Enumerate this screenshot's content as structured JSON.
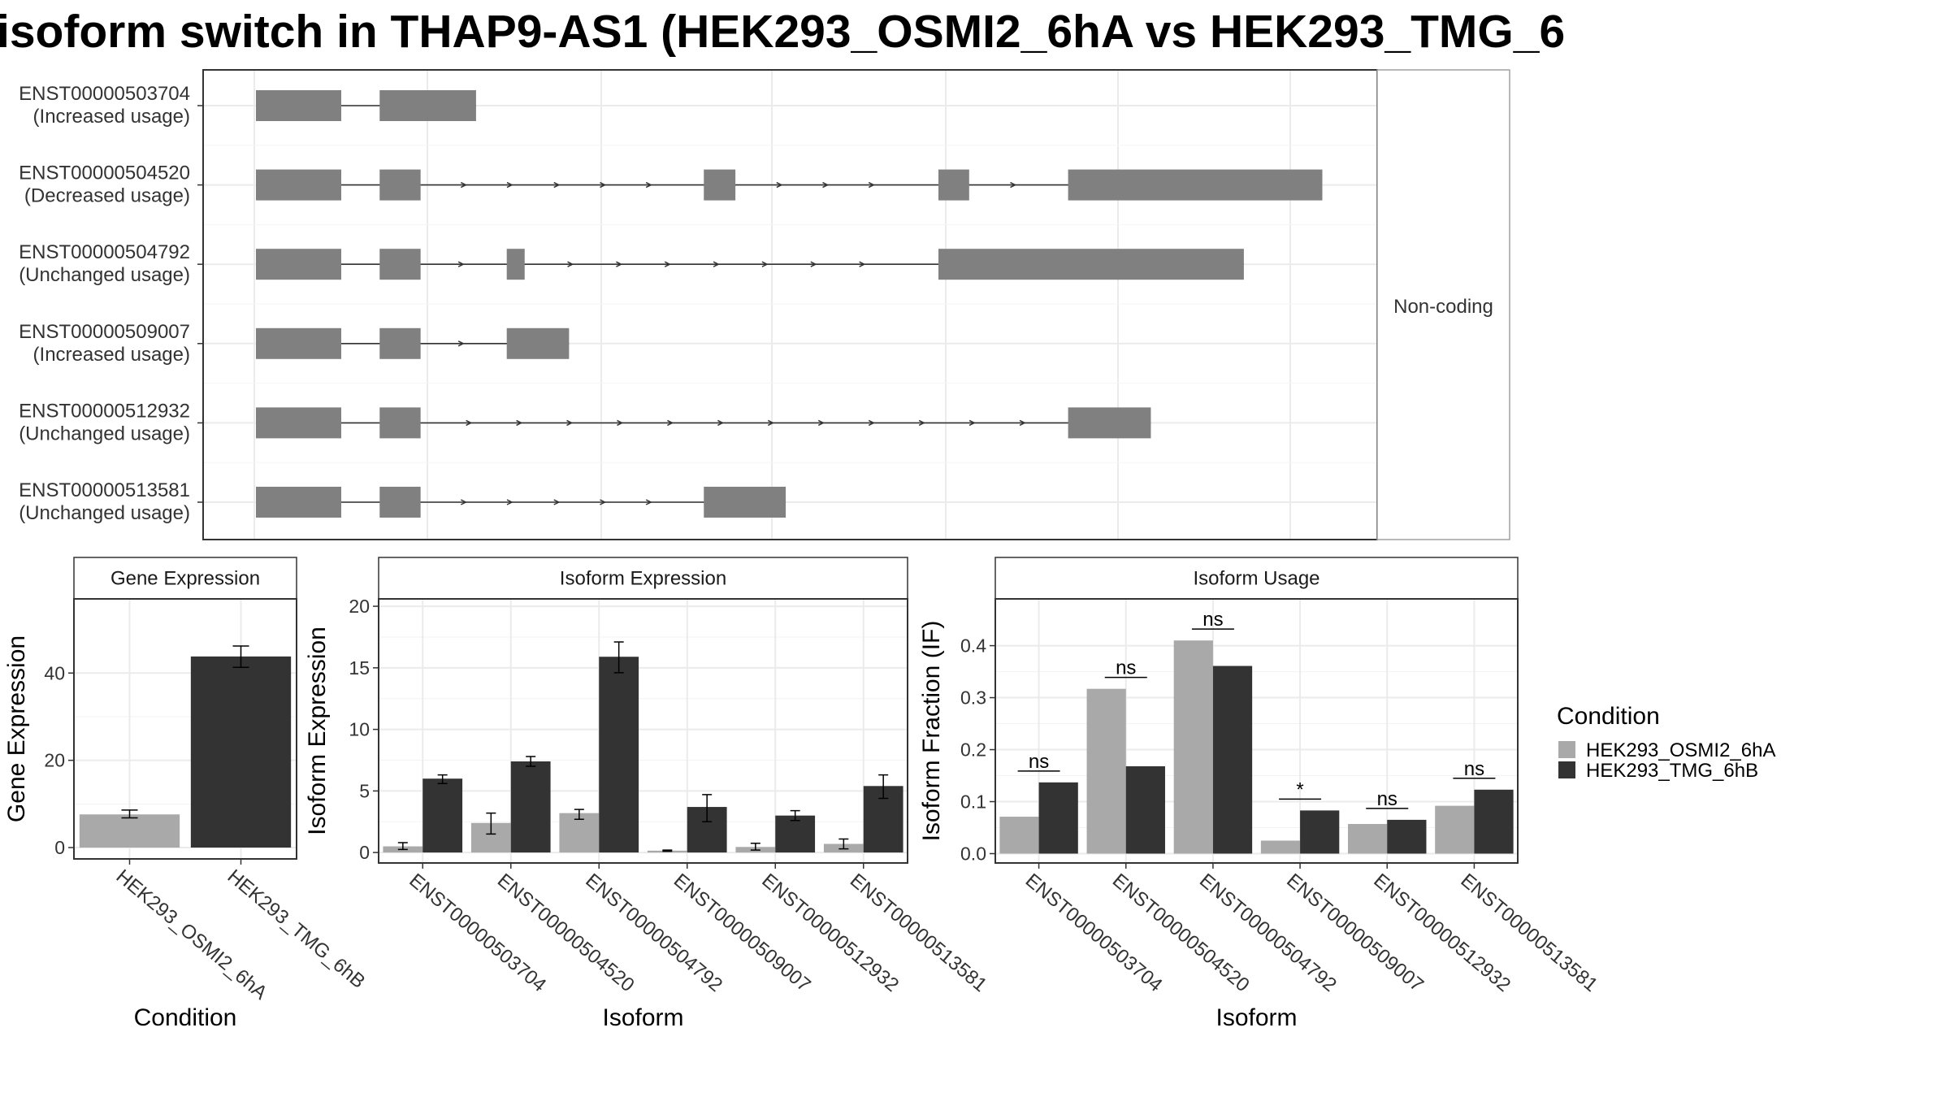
{
  "title": "isoform switch in THAP9-AS1 (HEK293_OSMI2_6hA vs HEK293_TMG_6",
  "colors": {
    "osmi": "#a9a9a9",
    "tmg": "#333333",
    "exon": "#808080",
    "panel_border": "#333333",
    "grid": "#ebebeb"
  },
  "structure": {
    "facet_label": "Non-coding",
    "transcripts": [
      {
        "id": "ENST00000503704",
        "usage": "(Increased usage)",
        "exons": [
          [
            0,
            100
          ],
          [
            145,
            258
          ]
        ],
        "arrows": []
      },
      {
        "id": "ENST00000504520",
        "usage": "(Decreased usage)",
        "exons": [
          [
            0,
            100
          ],
          [
            145,
            193
          ],
          [
            525,
            562
          ],
          [
            800,
            836
          ],
          [
            952,
            1250
          ]
        ],
        "arrows": [
          246,
          300,
          355,
          409,
          463,
          616,
          670,
          724,
          890
        ]
      },
      {
        "id": "ENST00000504792",
        "usage": "(Unchanged usage)",
        "exons": [
          [
            0,
            100
          ],
          [
            145,
            193
          ],
          [
            294,
            315
          ],
          [
            800,
            1158
          ]
        ],
        "arrows": [
          243,
          371,
          428,
          485,
          542,
          599,
          656,
          713
        ]
      },
      {
        "id": "ENST00000509007",
        "usage": "(Increased usage)",
        "exons": [
          [
            0,
            100
          ],
          [
            145,
            193
          ],
          [
            294,
            367
          ]
        ],
        "arrows": [
          243
        ]
      },
      {
        "id": "ENST00000512932",
        "usage": "(Unchanged usage)",
        "exons": [
          [
            0,
            100
          ],
          [
            145,
            193
          ],
          [
            952,
            1049
          ]
        ],
        "arrows": [
          252,
          311,
          370,
          429,
          488,
          547,
          606,
          665,
          724,
          783,
          842,
          901
        ]
      },
      {
        "id": "ENST00000513581",
        "usage": "(Unchanged usage)",
        "exons": [
          [
            0,
            100
          ],
          [
            145,
            193
          ],
          [
            525,
            621
          ]
        ],
        "arrows": [
          246,
          300,
          355,
          409,
          463
        ]
      }
    ]
  },
  "legend": {
    "title": "Condition",
    "items": [
      "HEK293_OSMI2_6hA",
      "HEK293_TMG_6hB"
    ]
  },
  "chart_data": [
    {
      "type": "bar",
      "title": "Gene Expression",
      "xlabel": "Condition",
      "ylabel": "Gene Expression",
      "categories": [
        "HEK293_OSMI2_6hA",
        "HEK293_TMG_6hB"
      ],
      "values": [
        7.6,
        43.8
      ],
      "errors": [
        [
          6.8,
          8.6
        ],
        [
          41.3,
          46.2
        ]
      ],
      "ylim": [
        -2.6,
        57
      ],
      "yticks": [
        0,
        20,
        40
      ],
      "grid": true
    },
    {
      "type": "bar",
      "title": "Isoform Expression",
      "xlabel": "Isoform",
      "ylabel": "Isoform Expression",
      "categories": [
        "ENST00000503704",
        "ENST00000504520",
        "ENST00000504792",
        "ENST00000509007",
        "ENST00000512932",
        "ENST00000513581"
      ],
      "series": [
        {
          "name": "HEK293_OSMI2_6hA",
          "values": [
            0.5,
            2.4,
            3.2,
            0.15,
            0.45,
            0.7
          ],
          "errors": [
            [
              0.25,
              0.8
            ],
            [
              1.5,
              3.2
            ],
            [
              2.7,
              3.5
            ],
            [
              0.1,
              0.2
            ],
            [
              0.2,
              0.75
            ],
            [
              0.3,
              1.1
            ]
          ]
        },
        {
          "name": "HEK293_TMG_6hB",
          "values": [
            6.0,
            7.4,
            15.9,
            3.7,
            3.0,
            5.4
          ],
          "errors": [
            [
              5.6,
              6.3
            ],
            [
              7.0,
              7.8
            ],
            [
              14.6,
              17.1
            ],
            [
              2.5,
              4.7
            ],
            [
              2.6,
              3.4
            ],
            [
              4.4,
              6.3
            ]
          ]
        }
      ],
      "ylim": [
        -0.85,
        20.6
      ],
      "yticks": [
        0,
        5,
        10,
        15,
        20
      ],
      "grid": true
    },
    {
      "type": "bar",
      "title": "Isoform Usage",
      "xlabel": "Isoform",
      "ylabel": "Isoform Fraction (IF)",
      "categories": [
        "ENST00000503704",
        "ENST00000504520",
        "ENST00000504792",
        "ENST00000509007",
        "ENST00000512932",
        "ENST00000513581"
      ],
      "series": [
        {
          "name": "HEK293_OSMI2_6hA",
          "values": [
            0.071,
            0.317,
            0.41,
            0.025,
            0.057,
            0.092
          ]
        },
        {
          "name": "HEK293_TMG_6hB",
          "values": [
            0.137,
            0.168,
            0.361,
            0.083,
            0.065,
            0.123
          ]
        }
      ],
      "annotations": [
        "ns",
        "ns",
        "ns",
        "*",
        "ns",
        "ns"
      ],
      "ylim": [
        -0.018,
        0.49
      ],
      "yticks": [
        0.0,
        0.1,
        0.2,
        0.3,
        0.4
      ],
      "ytick_labels": [
        "0.0",
        "0.1",
        "0.2",
        "0.3",
        "0.4"
      ],
      "grid": true
    }
  ]
}
